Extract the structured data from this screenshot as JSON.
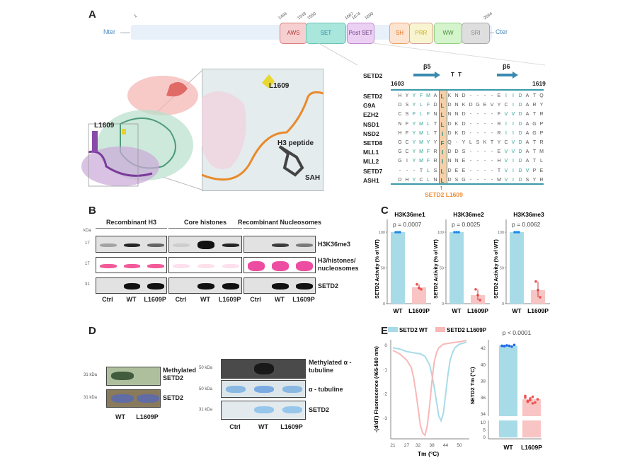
{
  "panels": {
    "a": "A",
    "b": "B",
    "c": "C",
    "d": "D",
    "e": "E"
  },
  "domain_map": {
    "nter": "Nter",
    "cter": "Cter",
    "positions": [
      "1",
      "1494",
      "1548",
      "1550",
      "1667",
      "1674",
      "1690",
      "2564"
    ],
    "domains": [
      {
        "label": "AWS",
        "color": "#f6d0d0",
        "border": "#d98080",
        "text": "#b03030"
      },
      {
        "label": "SET",
        "color": "#a9e6dc",
        "border": "#6cc4b4",
        "text": "#2a8aa8"
      },
      {
        "label": "Post SET",
        "color": "#ecd0f4",
        "border": "#c08ad0",
        "text": "#6a3a7a"
      },
      {
        "label": "SH",
        "color": "#fde4d0",
        "border": "#f0a070",
        "text": "#e07020"
      },
      {
        "label": "PRR",
        "color": "#f8f4d0",
        "border": "#d8a0a0",
        "text": "#c8b020"
      },
      {
        "label": "WW",
        "color": "#d4f4cc",
        "border": "#90d080",
        "text": "#4a8a3a"
      },
      {
        "label": "SRI",
        "color": "#dedede",
        "border": "#a8a8a8",
        "text": "#888888"
      }
    ]
  },
  "structure": {
    "l1609_main": "L1609",
    "l1609_inset": "L1609",
    "h3": "H3 peptide",
    "sah": "SAH"
  },
  "alignment": {
    "header_name": "SETD2",
    "beta5": "β5",
    "beta6": "β6",
    "turns": "T T",
    "start": "1603",
    "end": "1619",
    "highlight_col": 6,
    "mutation_label": "SETD2 L1609",
    "arrow": "↑",
    "rows": [
      {
        "name": "SETD2",
        "seq": "HYYFMALKND----EIIDATQ"
      },
      {
        "name": "G9A",
        "seq": "DSYLFDLDNKDGEVYCIDARY"
      },
      {
        "name": "EZH2",
        "seq": "CSFLFNLNND----FVVDATR"
      },
      {
        "name": "NSD1",
        "seq": "NFYMLTLDKD----RIIDAGP"
      },
      {
        "name": "NSD2",
        "seq": "HFYMLTIDKD----RIIDAGP"
      },
      {
        "name": "SETD8",
        "seq": "GCYMYYFQ-YLSKTYCVDATR"
      },
      {
        "name": "MLL1",
        "seq": "GCYMFRIDDS----EVVDATM"
      },
      {
        "name": "MLL2",
        "seq": "GIYMFRINNE----HVIDATL"
      },
      {
        "name": "SETD7",
        "seq": "---TLSLDEE----TVIDVPE"
      },
      {
        "name": "ASH1",
        "seq": "DHYCLNLDSG----MVIDSYR"
      }
    ]
  },
  "panel_b": {
    "kda": "kDa",
    "markers": [
      "17",
      "17",
      "31"
    ],
    "groups": [
      "Recombinant H3",
      "Core histones",
      "Recombinant Nucleosomes"
    ],
    "rows": [
      "H3K36me3",
      "H3/histones/ nucleosomes",
      "SETD2"
    ],
    "lanes": [
      "Ctrl",
      "WT",
      "L1609P"
    ]
  },
  "panel_d": {
    "left": {
      "markers": [
        "31 kDa",
        "31 kDa"
      ],
      "rows": [
        "Methylated SETD2",
        "SETD2"
      ],
      "lanes": [
        "WT",
        "L1609P"
      ]
    },
    "right": {
      "markers": [
        "50 kDa",
        "50 kDa",
        "31 kDa"
      ],
      "rows": [
        "Methylated α - tubuline",
        "α - tubuline",
        "SETD2"
      ],
      "lanes": [
        "Ctrl",
        "WT",
        "L1609P"
      ]
    }
  },
  "chart_data": [
    {
      "type": "bar",
      "title": "H3K36me1",
      "annotation": "p = 0.0007",
      "ylabel": "SETD2 Activity (% of WT)",
      "categories": [
        "WT",
        "L1609P"
      ],
      "values": [
        100,
        23
      ],
      "points": [
        [
          100,
          100,
          100
        ],
        [
          27,
          22,
          20
        ]
      ],
      "yticks": [
        "0",
        "50",
        "100"
      ],
      "ylim": [
        0,
        120
      ]
    },
    {
      "type": "bar",
      "title": "H3K36me2",
      "annotation": "p = 0.0025",
      "ylabel": "SETD2 Activity (% of WT)",
      "categories": [
        "WT",
        "L1609P"
      ],
      "values": [
        100,
        12
      ],
      "points": [
        [
          100,
          100,
          100
        ],
        [
          20,
          12,
          5
        ]
      ],
      "yticks": [
        "0",
        "50",
        "100"
      ],
      "ylim": [
        0,
        120
      ]
    },
    {
      "type": "bar",
      "title": "H3K36me3",
      "annotation": "p = 0.0062",
      "ylabel": "SETD2 Activity (% of WT)",
      "categories": [
        "WT",
        "L1609P"
      ],
      "values": [
        100,
        19
      ],
      "points": [
        [
          100,
          100,
          100
        ],
        [
          31,
          19,
          9
        ]
      ],
      "yticks": [
        "0",
        "50",
        "100"
      ],
      "ylim": [
        0,
        120
      ]
    },
    {
      "type": "line",
      "xlabel": "Tm (°C)",
      "ylabel": "-(d/dT) Fluorescence (465-580 nm)",
      "xticks": [
        "21",
        "27",
        "32",
        "38",
        "44",
        "50"
      ],
      "yticks": [
        "0",
        "-1",
        "-2",
        "-3"
      ],
      "xlim": [
        21,
        54
      ],
      "ylim": [
        -3.9,
        0.3
      ],
      "series": [
        {
          "name": "SETD2 WT",
          "color": "#a8dbe8",
          "x": [
            21,
            24,
            27,
            30,
            33,
            35,
            37,
            38,
            39,
            40,
            41,
            42,
            43,
            44,
            45,
            46,
            47,
            48,
            50,
            52,
            53
          ],
          "y": [
            -0.1,
            -0.15,
            -0.25,
            -0.3,
            -0.35,
            -0.45,
            -0.8,
            -1.2,
            -1.7,
            -2.3,
            -2.9,
            -3.1,
            -2.8,
            -2.0,
            -1.2,
            -0.6,
            -0.3,
            -0.1,
            0.05,
            0.1,
            0.15
          ]
        },
        {
          "name": "SETD2 L1609P",
          "color": "#f8b8b8",
          "x": [
            21,
            24,
            27,
            29,
            30,
            31,
            32,
            33,
            34,
            35,
            36,
            37,
            38,
            39,
            40,
            41,
            43,
            46,
            50,
            53
          ],
          "y": [
            -0.2,
            -0.35,
            -0.6,
            -0.9,
            -1.3,
            -1.9,
            -2.6,
            -3.3,
            -3.6,
            -3.7,
            -3.3,
            -2.5,
            -1.5,
            -0.7,
            -0.3,
            -0.1,
            0.05,
            0.1,
            0.15,
            0.2
          ]
        }
      ]
    },
    {
      "type": "bar",
      "annotation": "p < 0.0001",
      "ylabel": "SETD2 Tm (°C)",
      "categories": [
        "WT",
        "L1609P"
      ],
      "values": [
        42.3,
        35.8
      ],
      "points": [
        [
          42.3,
          42.25,
          42.35,
          42.3,
          42.2,
          42.4,
          42.3,
          42.28
        ],
        [
          36.2,
          35.5,
          35.9,
          36.1,
          35.4,
          35.8,
          36.0,
          35.6,
          35.7,
          35.3
        ]
      ],
      "yticks_upper": [
        "34",
        "36",
        "38",
        "40",
        "42"
      ],
      "yticks_lower": [
        "0",
        "5",
        "10"
      ],
      "ylim_upper": [
        34,
        43
      ],
      "ylim_lower": [
        0,
        10
      ]
    }
  ]
}
